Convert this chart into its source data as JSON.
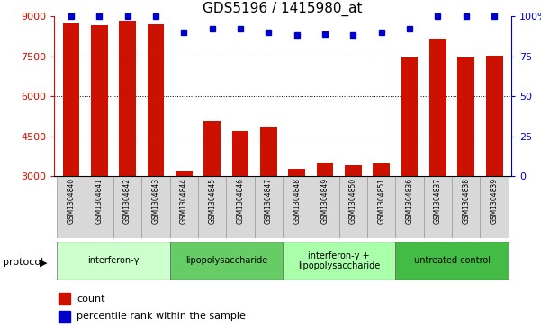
{
  "title": "GDS5196 / 1415980_at",
  "samples": [
    "GSM1304840",
    "GSM1304841",
    "GSM1304842",
    "GSM1304843",
    "GSM1304844",
    "GSM1304845",
    "GSM1304846",
    "GSM1304847",
    "GSM1304848",
    "GSM1304849",
    "GSM1304850",
    "GSM1304851",
    "GSM1304836",
    "GSM1304837",
    "GSM1304838",
    "GSM1304839"
  ],
  "counts": [
    8750,
    8680,
    8820,
    8700,
    3200,
    5050,
    4680,
    4850,
    3280,
    3500,
    3420,
    3480,
    7450,
    8150,
    7450,
    7520
  ],
  "percentile_ranks": [
    100,
    100,
    100,
    100,
    90,
    92,
    92,
    90,
    88,
    89,
    88,
    90,
    92,
    100,
    100,
    100
  ],
  "ylim_left": [
    3000,
    9000
  ],
  "ylim_right": [
    0,
    100
  ],
  "yticks_left": [
    3000,
    4500,
    6000,
    7500,
    9000
  ],
  "yticks_right": [
    0,
    25,
    50,
    75,
    100
  ],
  "bar_color": "#cc1100",
  "dot_color": "#0000cc",
  "bg_color": "#ffffff",
  "protocol_groups": [
    {
      "label": "interferon-γ",
      "start": 0,
      "end": 3,
      "color": "#ccffcc"
    },
    {
      "label": "lipopolysaccharide",
      "start": 4,
      "end": 7,
      "color": "#66cc66"
    },
    {
      "label": "interferon-γ +\nlipopolysaccharide",
      "start": 8,
      "end": 11,
      "color": "#aaffaa"
    },
    {
      "label": "untreated control",
      "start": 12,
      "end": 15,
      "color": "#44bb44"
    }
  ],
  "legend_count_label": "count",
  "legend_percentile_label": "percentile rank within the sample",
  "xlabel_protocol": "protocol",
  "title_fontsize": 11,
  "axis_label_color_left": "#cc1100",
  "axis_label_color_right": "#0000cc"
}
